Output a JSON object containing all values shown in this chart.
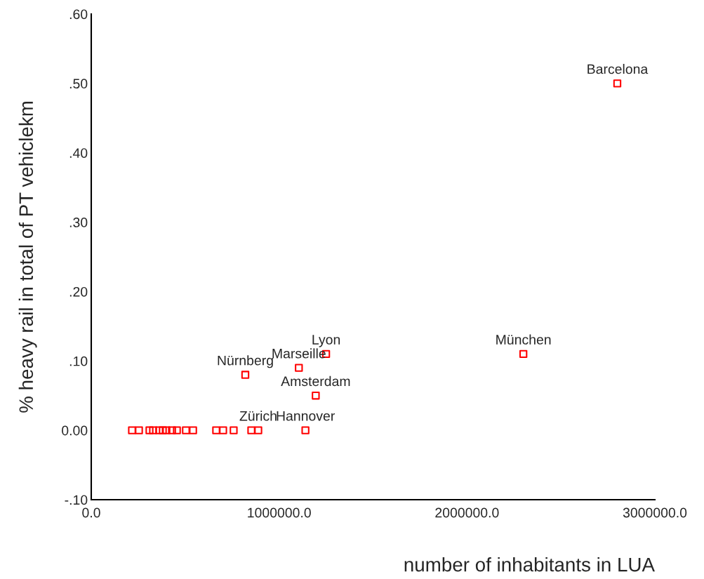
{
  "chart_data": {
    "type": "scatter",
    "xlabel": "number of inhabitants in LUA",
    "ylabel": "% heavy rail in total of PT vehiclekm",
    "x": [
      2800000,
      2300000,
      1250000,
      1105000,
      820000,
      1195000,
      1140000,
      217000,
      254000,
      310000,
      329000,
      362000,
      381000,
      400000,
      430000,
      456000,
      504000,
      542000,
      665000,
      702000,
      758000,
      852000,
      889000
    ],
    "series": [
      {
        "color": "#ff0000",
        "values": [
          0.5,
          0.11,
          0.11,
          0.09,
          0.08,
          0.05,
          0,
          0,
          0,
          0,
          0,
          0,
          0,
          0,
          0,
          0,
          0,
          0,
          0,
          0,
          0,
          0,
          0
        ]
      }
    ],
    "marker": "square",
    "grid": false,
    "legend": false,
    "xlim": [
      0,
      3000000
    ],
    "xticks": [
      {
        "value": 0,
        "label": "0.0"
      },
      {
        "value": 1000000,
        "label": "1000000.0"
      },
      {
        "value": 2000000,
        "label": "2000000.0"
      },
      {
        "value": 3000000,
        "label": "3000000.0"
      }
    ],
    "ylim": [
      -0.1,
      0.6
    ],
    "yticks": [
      {
        "value": -0.1,
        "label": "-.10"
      },
      {
        "value": 0,
        "label": "0.00"
      },
      {
        "value": 0.1,
        "label": ".10"
      },
      {
        "value": 0.2,
        "label": ".20"
      },
      {
        "value": 0.3,
        "label": ".30"
      },
      {
        "value": 0.4,
        "label": ".40"
      },
      {
        "value": 0.5,
        "label": ".50"
      },
      {
        "value": 0.6,
        "label": ".60"
      }
    ],
    "annotations": [
      {
        "text": "Barcelona",
        "x": 2800000,
        "y": 0.5
      },
      {
        "text": "München",
        "x": 2300000,
        "y": 0.11
      },
      {
        "text": "Lyon",
        "x": 1250000,
        "y": 0.11
      },
      {
        "text": "Marseille",
        "x": 1105000,
        "y": 0.09
      },
      {
        "text": "Nürnberg",
        "x": 820000,
        "y": 0.08
      },
      {
        "text": "Amsterdam",
        "x": 1195000,
        "y": 0.05
      },
      {
        "text": "Hannover",
        "x": 1140000,
        "y": 0
      },
      {
        "text": "Zürich",
        "x": 889000,
        "y": 0
      }
    ]
  }
}
